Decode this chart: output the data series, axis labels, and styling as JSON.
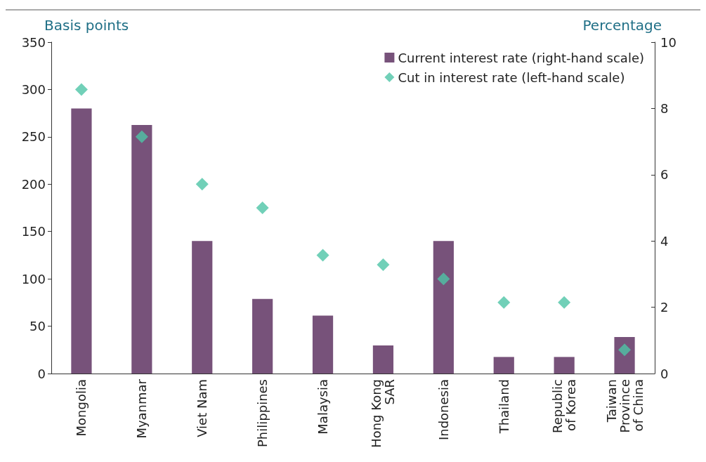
{
  "chart_data": {
    "type": "bar",
    "ylabel": "Basis points",
    "y2label": "Percentage",
    "categories": [
      "Mongolia",
      "Myanmar",
      "Viet Nam",
      "Philippines",
      "Malaysia",
      "Hong Kong\nSAR",
      "Indonesia",
      "Thailand",
      "Republic\nof Korea",
      "Taiwan\nProvince\nof China"
    ],
    "series": [
      {
        "name": "Current interest rate (right-hand scale)",
        "axis": "y2",
        "color": "#77527a",
        "values": [
          8.0,
          7.5,
          4.0,
          2.25,
          1.75,
          0.85,
          4.0,
          0.5,
          0.5,
          1.1
        ]
      },
      {
        "name": "Cut in interest rate (left-hand scale)",
        "type": "scatter",
        "color": "#4ec4a6",
        "values": [
          300,
          250,
          200,
          175,
          125,
          115,
          100,
          75,
          75,
          25
        ]
      }
    ],
    "ylim": [
      0,
      350
    ],
    "yticks": [
      0,
      50,
      100,
      150,
      200,
      250,
      300,
      350
    ],
    "y2lim": [
      0,
      10
    ],
    "y2ticks": [
      0,
      2,
      4,
      6,
      8,
      10
    ],
    "marker": "diamond",
    "legend": "top right",
    "grid": false
  }
}
